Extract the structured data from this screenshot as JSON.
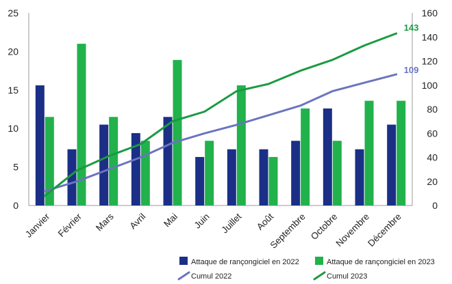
{
  "chart_data": {
    "type": "bar",
    "categories": [
      "Janvier",
      "Février",
      "Mars",
      "Avril",
      "Mai",
      "Juin",
      "Juillet",
      "Août",
      "Septembre",
      "Octobre",
      "Novembre",
      "Décembre"
    ],
    "series": [
      {
        "name": "Attaque de rançongiciel en 2022",
        "type": "bar",
        "axis": "left",
        "color": "#1b2f86",
        "values": [
          15.6,
          7.3,
          10.5,
          9.4,
          11.5,
          6.3,
          7.3,
          7.3,
          8.4,
          12.6,
          7.3,
          10.5
        ]
      },
      {
        "name": "Attaque de rançongiciel en 2023",
        "type": "bar",
        "axis": "left",
        "color": "#21b24b",
        "values": [
          11.5,
          21.0,
          11.5,
          8.4,
          18.9,
          8.4,
          15.6,
          6.3,
          12.6,
          8.4,
          13.6,
          13.6
        ]
      },
      {
        "name": "Cumul 2022",
        "type": "line",
        "axis": "right",
        "color": "#6b74be",
        "values": [
          12,
          20,
          30,
          40,
          52,
          60,
          67,
          75,
          83,
          95,
          102,
          109
        ]
      },
      {
        "name": "Cumul 2023",
        "type": "line",
        "axis": "right",
        "color": "#1a9a40",
        "values": [
          8,
          29,
          41,
          51,
          70,
          78,
          95,
          101,
          112,
          121,
          133,
          143
        ]
      }
    ],
    "y_left": {
      "range": [
        0,
        25
      ],
      "ticks": [
        "0",
        "5",
        "10",
        "15",
        "20",
        "25"
      ]
    },
    "y_right": {
      "range": [
        0,
        160
      ],
      "ticks": [
        "0",
        "20",
        "40",
        "60",
        "80",
        "100",
        "120",
        "140",
        "160"
      ]
    },
    "end_labels": {
      "cumul_2022": "109",
      "cumul_2023": "143"
    },
    "legend_placement": "bottom",
    "grid": false
  }
}
